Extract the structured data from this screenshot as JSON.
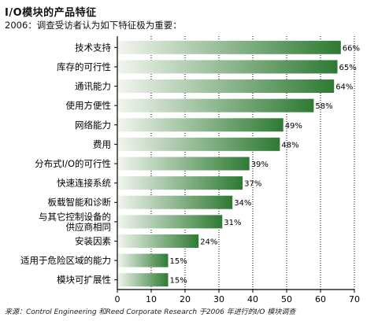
{
  "title": "I/O模块的产品特征",
  "subtitle": "2006：调查受访者认为如下特征极为重要：",
  "footnote": "来源：Control Engineering 和Reed Corporate Research 于2006 年进行的I/O 模块调查",
  "colors": {
    "bar_dark": "#2e7a33",
    "bar_light": "#f2f6ef",
    "grid": "#000000"
  },
  "chart_data": {
    "type": "bar",
    "orientation": "horizontal",
    "title": "I/O模块的产品特征",
    "subtitle": "2006：调查受访者认为如下特征极为重要：",
    "categories": [
      [
        "技术支持"
      ],
      [
        "库存的可行性"
      ],
      [
        "通讯能力"
      ],
      [
        "使用方便性"
      ],
      [
        "网络能力"
      ],
      [
        "费用"
      ],
      [
        "分布式I/O的可行性"
      ],
      [
        "快速连接系统"
      ],
      [
        "板载智能和诊断"
      ],
      [
        "与其它控制设备的",
        "供应商相同"
      ],
      [
        "安装因素"
      ],
      [
        "适用于危险区域的能力"
      ],
      [
        "模块可扩展性"
      ]
    ],
    "values": [
      66,
      65,
      64,
      58,
      49,
      48,
      39,
      37,
      34,
      31,
      24,
      15,
      15
    ],
    "value_labels": [
      "66%",
      "65%",
      "64%",
      "58%",
      "49%",
      "48%",
      "39%",
      "37%",
      "34%",
      "31%",
      "24%",
      "15%",
      "15%"
    ],
    "xlim": [
      0,
      70
    ],
    "xticks": [
      0,
      10,
      20,
      30,
      40,
      50,
      60,
      70
    ],
    "grid": true,
    "grid_style": "dotted vertical"
  }
}
